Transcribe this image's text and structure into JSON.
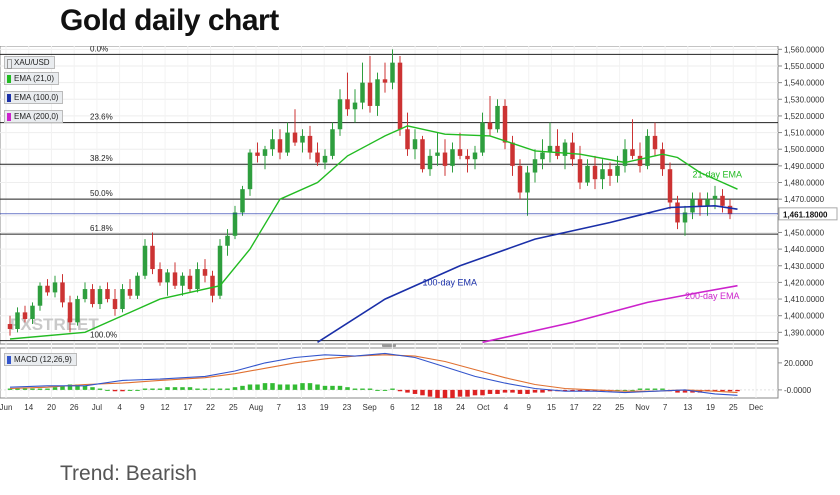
{
  "title": "Gold daily chart",
  "footer": "Trend: Bearish",
  "legend": [
    {
      "label": "XAU/USD",
      "color": "#e9ecef"
    },
    {
      "label": "EMA (21,0)",
      "color": "#22bb22"
    },
    {
      "label": "EMA (100,0)",
      "color": "#1a2fa8"
    },
    {
      "label": "EMA (200,0)",
      "color": "#cc22cc"
    }
  ],
  "macd_label": "MACD (12,26,9)",
  "watermark": "FXSTREET",
  "colors": {
    "up": "#2e9e3e",
    "down": "#cc3333",
    "ema21": "#22bb22",
    "ema100": "#1a2fa8",
    "ema200": "#cc22cc",
    "macd": "#3355cc",
    "signal": "#e07030"
  },
  "chart_data": {
    "type": "candlestick",
    "ylim": [
      1383,
      1562
    ],
    "y_ticks": [
      "1,560.0000",
      "1,550.0000",
      "1,540.0000",
      "1,530.0000",
      "1,520.0000",
      "1,510.0000",
      "1,500.0000",
      "1,490.0000",
      "1,480.0000",
      "1,470.0000",
      "1,460.0000",
      "1,450.0000",
      "1,440.0000",
      "1,430.0000",
      "1,420.0000",
      "1,410.0000",
      "1,400.0000",
      "1,390.0000"
    ],
    "x_ticks": [
      "Jun",
      "14",
      "20",
      "26",
      "Jul",
      "4",
      "9",
      "12",
      "17",
      "22",
      "25",
      "Aug",
      "7",
      "13",
      "19",
      "23",
      "Sep",
      "6",
      "12",
      "18",
      "24",
      "Oct",
      "4",
      "9",
      "15",
      "17",
      "22",
      "25",
      "Nov",
      "7",
      "13",
      "19",
      "25",
      "Dec"
    ],
    "price_label": "1,461.18000",
    "price_value": 1461.18,
    "fib_levels": [
      {
        "label": "0.0%",
        "value": 1557
      },
      {
        "label": "23.6%",
        "value": 1516
      },
      {
        "label": "38.2%",
        "value": 1491
      },
      {
        "label": "50.0%",
        "value": 1470
      },
      {
        "label": "61.8%",
        "value": 1449
      },
      {
        "label": "100.0%",
        "value": 1385
      }
    ],
    "ohlc": [
      [
        1395,
        1400,
        1388,
        1392
      ],
      [
        1392,
        1405,
        1390,
        1402
      ],
      [
        1402,
        1406,
        1396,
        1398
      ],
      [
        1398,
        1408,
        1395,
        1406
      ],
      [
        1406,
        1420,
        1403,
        1418
      ],
      [
        1418,
        1422,
        1412,
        1414
      ],
      [
        1414,
        1424,
        1411,
        1420
      ],
      [
        1420,
        1425,
        1405,
        1408
      ],
      [
        1408,
        1412,
        1390,
        1396
      ],
      [
        1396,
        1412,
        1394,
        1410
      ],
      [
        1410,
        1420,
        1408,
        1416
      ],
      [
        1416,
        1419,
        1405,
        1407
      ],
      [
        1407,
        1418,
        1404,
        1416
      ],
      [
        1416,
        1420,
        1408,
        1410
      ],
      [
        1410,
        1416,
        1400,
        1404
      ],
      [
        1404,
        1419,
        1402,
        1416
      ],
      [
        1416,
        1422,
        1410,
        1412
      ],
      [
        1412,
        1426,
        1410,
        1424
      ],
      [
        1424,
        1446,
        1422,
        1442
      ],
      [
        1442,
        1450,
        1425,
        1428
      ],
      [
        1428,
        1432,
        1418,
        1420
      ],
      [
        1420,
        1428,
        1412,
        1426
      ],
      [
        1426,
        1432,
        1416,
        1418
      ],
      [
        1418,
        1426,
        1412,
        1424
      ],
      [
        1424,
        1428,
        1414,
        1416
      ],
      [
        1416,
        1432,
        1414,
        1428
      ],
      [
        1428,
        1434,
        1420,
        1424
      ],
      [
        1424,
        1427,
        1408,
        1412
      ],
      [
        1412,
        1446,
        1410,
        1442
      ],
      [
        1442,
        1452,
        1436,
        1448
      ],
      [
        1448,
        1466,
        1446,
        1462
      ],
      [
        1462,
        1478,
        1460,
        1476
      ],
      [
        1476,
        1500,
        1472,
        1498
      ],
      [
        1498,
        1504,
        1492,
        1496
      ],
      [
        1496,
        1502,
        1488,
        1500
      ],
      [
        1500,
        1512,
        1496,
        1506
      ],
      [
        1506,
        1512,
        1494,
        1498
      ],
      [
        1498,
        1516,
        1496,
        1510
      ],
      [
        1510,
        1524,
        1502,
        1504
      ],
      [
        1504,
        1512,
        1498,
        1508
      ],
      [
        1508,
        1514,
        1494,
        1498
      ],
      [
        1498,
        1504,
        1490,
        1492
      ],
      [
        1492,
        1500,
        1488,
        1496
      ],
      [
        1496,
        1516,
        1494,
        1512
      ],
      [
        1512,
        1536,
        1508,
        1530
      ],
      [
        1530,
        1546,
        1520,
        1524
      ],
      [
        1524,
        1536,
        1516,
        1528
      ],
      [
        1528,
        1552,
        1524,
        1540
      ],
      [
        1540,
        1556,
        1522,
        1526
      ],
      [
        1526,
        1546,
        1520,
        1542
      ],
      [
        1542,
        1552,
        1534,
        1540
      ],
      [
        1540,
        1560,
        1536,
        1552
      ],
      [
        1552,
        1556,
        1508,
        1512
      ],
      [
        1512,
        1522,
        1496,
        1500
      ],
      [
        1500,
        1512,
        1494,
        1506
      ],
      [
        1506,
        1508,
        1486,
        1488
      ],
      [
        1488,
        1500,
        1484,
        1496
      ],
      [
        1496,
        1510,
        1490,
        1498
      ],
      [
        1498,
        1506,
        1484,
        1490
      ],
      [
        1490,
        1504,
        1486,
        1500
      ],
      [
        1500,
        1510,
        1494,
        1496
      ],
      [
        1496,
        1500,
        1486,
        1494
      ],
      [
        1494,
        1502,
        1488,
        1498
      ],
      [
        1498,
        1522,
        1496,
        1516
      ],
      [
        1516,
        1532,
        1508,
        1512
      ],
      [
        1512,
        1530,
        1510,
        1526
      ],
      [
        1526,
        1530,
        1500,
        1504
      ],
      [
        1504,
        1508,
        1484,
        1490
      ],
      [
        1490,
        1494,
        1470,
        1474
      ],
      [
        1474,
        1490,
        1460,
        1486
      ],
      [
        1486,
        1500,
        1480,
        1494
      ],
      [
        1494,
        1506,
        1488,
        1498
      ],
      [
        1498,
        1516,
        1492,
        1502
      ],
      [
        1502,
        1512,
        1494,
        1496
      ],
      [
        1496,
        1506,
        1488,
        1504
      ],
      [
        1504,
        1510,
        1490,
        1494
      ],
      [
        1494,
        1502,
        1476,
        1480
      ],
      [
        1480,
        1494,
        1478,
        1490
      ],
      [
        1490,
        1496,
        1476,
        1482
      ],
      [
        1482,
        1494,
        1476,
        1488
      ],
      [
        1488,
        1492,
        1478,
        1484
      ],
      [
        1484,
        1496,
        1480,
        1490
      ],
      [
        1490,
        1506,
        1486,
        1500
      ],
      [
        1500,
        1518,
        1494,
        1496
      ],
      [
        1496,
        1504,
        1486,
        1490
      ],
      [
        1490,
        1512,
        1488,
        1508
      ],
      [
        1508,
        1516,
        1496,
        1500
      ],
      [
        1500,
        1504,
        1484,
        1488
      ],
      [
        1488,
        1492,
        1464,
        1468
      ],
      [
        1468,
        1472,
        1452,
        1456
      ],
      [
        1456,
        1466,
        1448,
        1462
      ],
      [
        1462,
        1474,
        1458,
        1470
      ],
      [
        1470,
        1474,
        1460,
        1466
      ],
      [
        1466,
        1474,
        1460,
        1470
      ],
      [
        1470,
        1478,
        1464,
        1472
      ],
      [
        1472,
        1476,
        1462,
        1466
      ],
      [
        1466,
        1470,
        1458,
        1461
      ]
    ],
    "ema21": [
      [
        0,
        1386
      ],
      [
        10,
        1390
      ],
      [
        20,
        1410
      ],
      [
        28,
        1418
      ],
      [
        32,
        1440
      ],
      [
        36,
        1470
      ],
      [
        41,
        1480
      ],
      [
        45,
        1496
      ],
      [
        50,
        1508
      ],
      [
        53,
        1514
      ],
      [
        58,
        1509
      ],
      [
        64,
        1508
      ],
      [
        70,
        1499
      ],
      [
        76,
        1497
      ],
      [
        82,
        1492
      ],
      [
        87,
        1497
      ],
      [
        89,
        1495
      ],
      [
        92,
        1486
      ],
      [
        95,
        1480
      ],
      [
        97,
        1476
      ]
    ],
    "ema100": [
      [
        41,
        1384
      ],
      [
        50,
        1410
      ],
      [
        60,
        1430
      ],
      [
        70,
        1446
      ],
      [
        80,
        1456
      ],
      [
        88,
        1465
      ],
      [
        94,
        1466
      ],
      [
        97,
        1464
      ]
    ],
    "ema200": [
      [
        63,
        1384
      ],
      [
        75,
        1396
      ],
      [
        85,
        1408
      ],
      [
        92,
        1414
      ],
      [
        97,
        1418
      ]
    ],
    "annotations": [
      {
        "label": "21-day EMA",
        "color": "#22bb22",
        "x_idx": 91,
        "value": 1483
      },
      {
        "label": "100-day EMA",
        "color": "#1a2fa8",
        "x_idx": 55,
        "value": 1418
      },
      {
        "label": "200-day EMA",
        "color": "#cc22cc",
        "x_idx": 90,
        "value": 1410
      }
    ],
    "macd": {
      "ylim": [
        -6,
        31
      ],
      "y_ticks": [
        "20.0000",
        "-0.0000"
      ],
      "macd_line": [
        [
          0,
          2
        ],
        [
          5,
          3
        ],
        [
          10,
          3
        ],
        [
          15,
          7
        ],
        [
          20,
          8
        ],
        [
          26,
          10
        ],
        [
          30,
          14
        ],
        [
          34,
          20
        ],
        [
          38,
          24
        ],
        [
          42,
          26
        ],
        [
          46,
          25
        ],
        [
          50,
          27
        ],
        [
          54,
          24
        ],
        [
          58,
          17
        ],
        [
          62,
          10
        ],
        [
          66,
          5
        ],
        [
          70,
          1
        ],
        [
          74,
          -1
        ],
        [
          78,
          -1
        ],
        [
          82,
          -2
        ],
        [
          86,
          -1
        ],
        [
          90,
          0
        ],
        [
          94,
          -3
        ],
        [
          97,
          -4
        ]
      ],
      "signal_line": [
        [
          0,
          1
        ],
        [
          5,
          2
        ],
        [
          10,
          4
        ],
        [
          15,
          5
        ],
        [
          20,
          7
        ],
        [
          26,
          9
        ],
        [
          30,
          12
        ],
        [
          34,
          16
        ],
        [
          38,
          20
        ],
        [
          42,
          23
        ],
        [
          46,
          25
        ],
        [
          50,
          26
        ],
        [
          54,
          25
        ],
        [
          58,
          21
        ],
        [
          62,
          15
        ],
        [
          66,
          9
        ],
        [
          70,
          4
        ],
        [
          74,
          1
        ],
        [
          78,
          0
        ],
        [
          82,
          -1
        ],
        [
          86,
          -1
        ],
        [
          90,
          0
        ],
        [
          94,
          -1
        ],
        [
          97,
          -2
        ]
      ],
      "histogram": [
        1,
        1,
        1,
        1,
        1,
        1,
        2,
        3,
        4,
        4,
        3,
        2,
        1,
        0,
        -1,
        -1,
        0,
        0,
        1,
        1,
        1,
        2,
        2,
        2,
        2,
        1,
        1,
        1,
        1,
        1,
        2,
        3,
        4,
        4,
        5,
        5,
        4,
        4,
        4,
        5,
        5,
        4,
        3,
        3,
        3,
        2,
        1,
        1,
        1,
        0,
        0,
        1,
        -1,
        -2,
        -3,
        -4,
        -5,
        -6,
        -6,
        -6,
        -5,
        -5,
        -4,
        -4,
        -3,
        -3,
        -2,
        -2,
        -3,
        -3,
        -2,
        -2,
        -1,
        -1,
        -1,
        -1,
        -1,
        -1,
        -1,
        -1,
        -1,
        0,
        0,
        0,
        1,
        1,
        1,
        1,
        -1,
        -2,
        -2,
        -2,
        -2,
        -1,
        -1,
        -1,
        -1,
        -1
      ]
    }
  }
}
